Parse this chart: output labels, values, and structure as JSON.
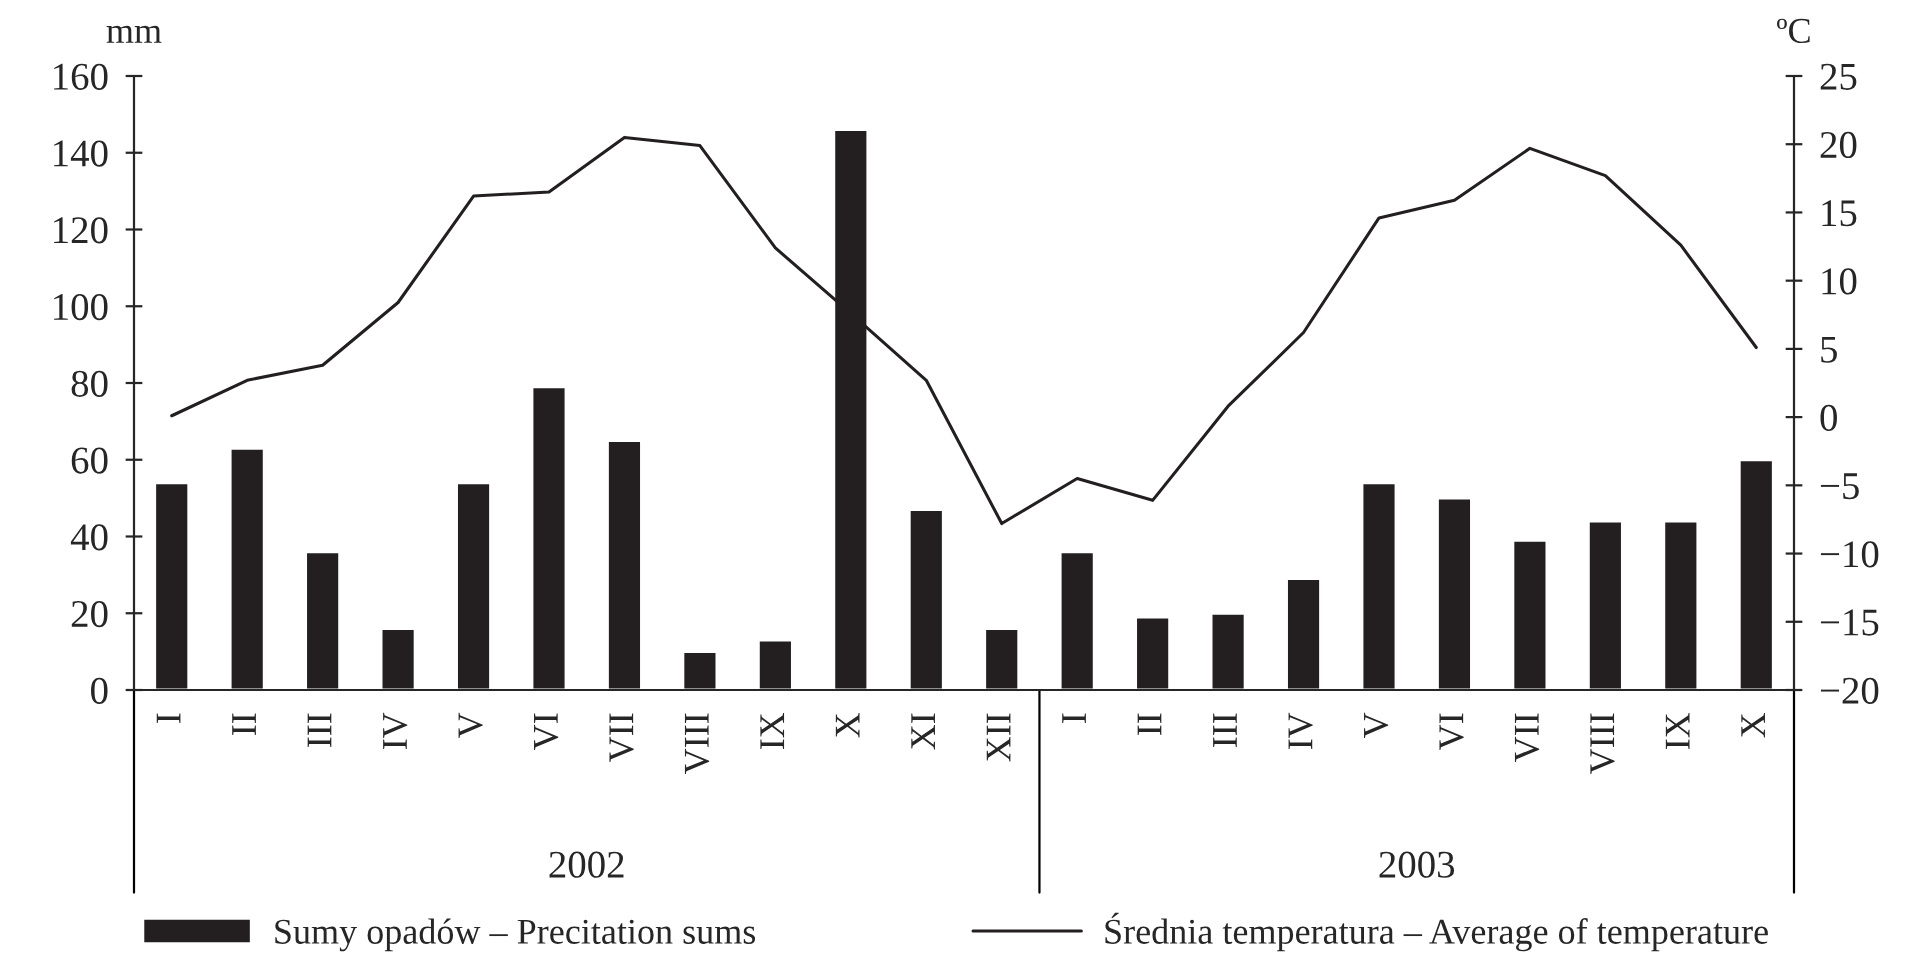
{
  "chart_data": {
    "type": "bar",
    "categories": [
      "I",
      "II",
      "III",
      "IV",
      "V",
      "VI",
      "VII",
      "VIII",
      "IX",
      "X",
      "XI",
      "XII",
      "I",
      "II",
      "III",
      "IV",
      "V",
      "VI",
      "VII",
      "VIII",
      "IX",
      "X"
    ],
    "series": [
      {
        "name": "Sumy opadów – Precitation sums",
        "color": "#231f20",
        "values": [
          54,
          63,
          36,
          16,
          54,
          79,
          65,
          10,
          13,
          146,
          47,
          16,
          36,
          19,
          20,
          29,
          54,
          50,
          39,
          44,
          44,
          60
        ]
      },
      {
        "name": "Średnia temperatura – Average of temperature",
        "type": "line",
        "axis": "y2",
        "color": "#231f20",
        "values": [
          0.1,
          2.7,
          3.8,
          8.4,
          16.2,
          16.5,
          20.5,
          19.9,
          12.4,
          7.6,
          2.7,
          -7.8,
          -4.5,
          -6.1,
          0.8,
          6.2,
          14.6,
          15.9,
          19.7,
          17.7,
          12.6,
          5.1
        ]
      }
    ],
    "ylabel": "mm",
    "y2label": "ºC",
    "ylim": [
      0,
      160
    ],
    "yticks": [
      0,
      20,
      40,
      60,
      80,
      100,
      120,
      140,
      160
    ],
    "y2lim": [
      -20,
      25
    ],
    "y2ticks": [
      {
        "value": -20,
        "label": "−20"
      },
      {
        "value": -15,
        "label": "−15"
      },
      {
        "value": -10,
        "label": "−10"
      },
      {
        "value": -5,
        "label": "−5"
      },
      0,
      5,
      10,
      15,
      20,
      25
    ],
    "annotations": [
      "2002",
      "2003"
    ],
    "legend": "bottom",
    "grid": false,
    "marker": "none",
    "line_style": "solid"
  }
}
